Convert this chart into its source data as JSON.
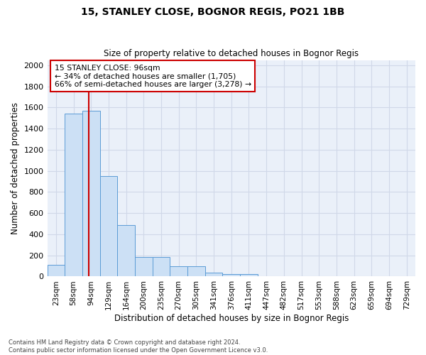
{
  "title1": "15, STANLEY CLOSE, BOGNOR REGIS, PO21 1BB",
  "title2": "Size of property relative to detached houses in Bognor Regis",
  "xlabel": "Distribution of detached houses by size in Bognor Regis",
  "ylabel": "Number of detached properties",
  "footnote1": "Contains HM Land Registry data © Crown copyright and database right 2024.",
  "footnote2": "Contains public sector information licensed under the Open Government Licence v3.0.",
  "bin_labels": [
    "23sqm",
    "58sqm",
    "94sqm",
    "129sqm",
    "164sqm",
    "200sqm",
    "235sqm",
    "270sqm",
    "305sqm",
    "341sqm",
    "376sqm",
    "411sqm",
    "447sqm",
    "482sqm",
    "517sqm",
    "553sqm",
    "588sqm",
    "623sqm",
    "659sqm",
    "694sqm",
    "729sqm"
  ],
  "bar_heights": [
    110,
    1540,
    1570,
    950,
    490,
    185,
    185,
    100,
    100,
    40,
    25,
    20,
    0,
    0,
    0,
    0,
    0,
    0,
    0,
    0,
    0
  ],
  "bar_color": "#cce0f5",
  "bar_edge_color": "#5b9bd5",
  "vline_pos": 1.85,
  "vline_color": "#cc0000",
  "annotation_text": "15 STANLEY CLOSE: 96sqm\n← 34% of detached houses are smaller (1,705)\n66% of semi-detached houses are larger (3,278) →",
  "annotation_box_color": "#ffffff",
  "annotation_box_edge": "#cc0000",
  "ylim": [
    0,
    2050
  ],
  "yticks": [
    0,
    200,
    400,
    600,
    800,
    1000,
    1200,
    1400,
    1600,
    1800,
    2000
  ],
  "grid_color": "#d0d8e8",
  "bg_color": "#eaf0f9",
  "fig_bg": "#ffffff"
}
